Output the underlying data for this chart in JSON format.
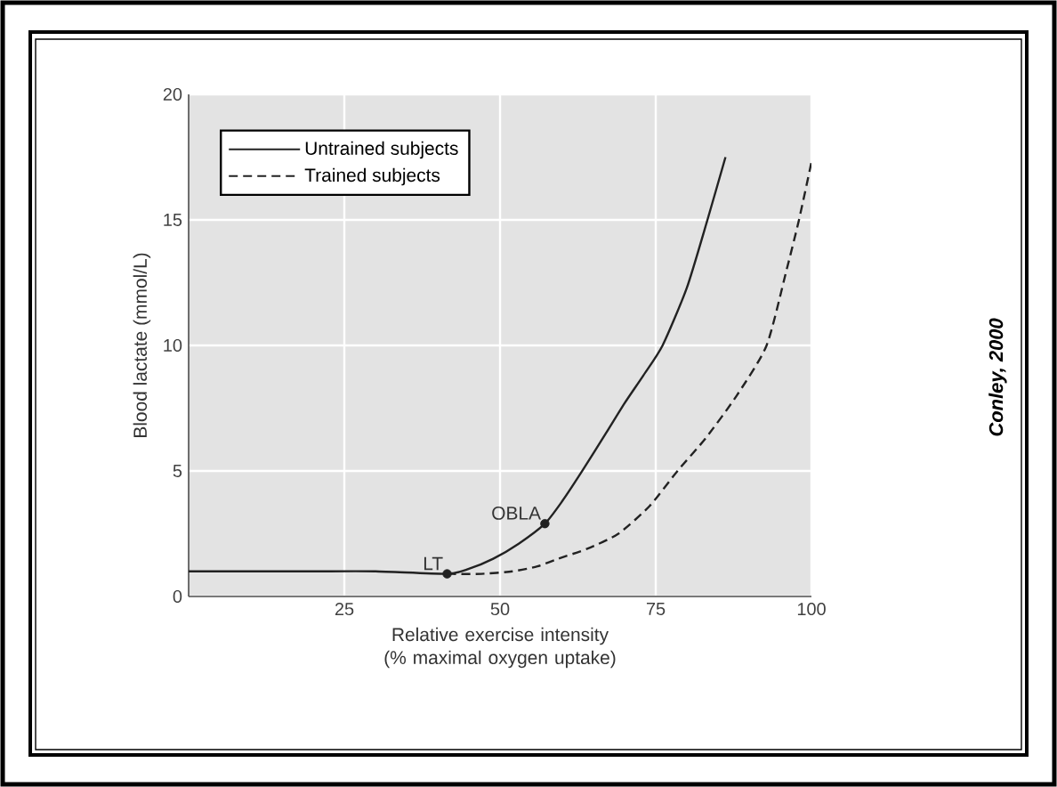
{
  "chart_data": {
    "type": "line",
    "xlabel": "Relative exercise intensity (% maximal oxygen uptake)",
    "ylabel": "Blood lactate (mmol/L)",
    "xlim": [
      0,
      100
    ],
    "ylim": [
      0,
      20
    ],
    "xticks": [
      25,
      50,
      75,
      100
    ],
    "yticks": [
      0,
      5,
      10,
      15,
      20
    ],
    "grid": true,
    "legend": "top left",
    "marker": "none",
    "series": [
      {
        "name": "Untrained subjects",
        "color": "#222222",
        "line_style": "solid",
        "x": [
          0,
          10,
          20,
          30,
          41.5,
          45,
          48.9,
          53,
          57.2,
          60,
          63.2,
          67,
          70,
          73,
          76.1,
          80,
          83.3,
          86.2
        ],
        "values": [
          1.0,
          1.0,
          1.0,
          1.0,
          0.9,
          1.1,
          1.5,
          2.1,
          2.9,
          3.8,
          5,
          6.5,
          7.7,
          8.8,
          10,
          12.3,
          15,
          17.5
        ]
      },
      {
        "name": "Trained subjects",
        "color": "#222222",
        "line_style": "dashed",
        "x": [
          41.5,
          47,
          52,
          56,
          59.3,
          64,
          69,
          74,
          78.5,
          83,
          88,
          92.8,
          96,
          98,
          100
        ],
        "values": [
          0.9,
          0.9,
          1.0,
          1.2,
          1.5,
          1.9,
          2.5,
          3.6,
          5,
          6.3,
          8,
          10,
          13,
          15,
          17.3
        ]
      },
      {
        "type": "scatter",
        "color": "#222222",
        "marker": "circle",
        "x": [
          41.5,
          57.2
        ],
        "values": [
          0.9,
          2.9
        ]
      }
    ],
    "annotations": [
      {
        "text": "LT",
        "x": 41.5,
        "y": 0.9
      },
      {
        "text": "OBLA",
        "x": 57.2,
        "y": 2.9
      },
      "Conley, 2000"
    ]
  }
}
